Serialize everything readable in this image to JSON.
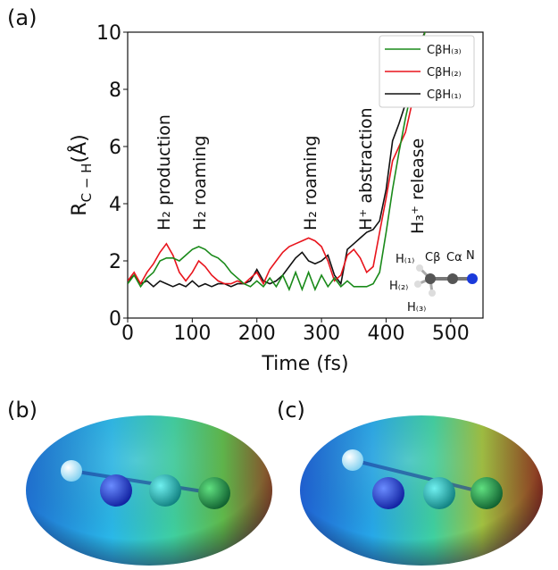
{
  "chart_data": {
    "type": "line",
    "y_label": [
      "R",
      "C − H",
      "(Å)"
    ],
    "x_label": "Time (fs)",
    "xlim": [
      0,
      550
    ],
    "ylim": [
      0,
      10
    ],
    "xticks": [
      0,
      100,
      200,
      300,
      400,
      500
    ],
    "yticks": [
      0,
      2,
      4,
      6,
      8,
      10
    ],
    "legend": "upper right",
    "x": [
      0,
      10,
      20,
      30,
      40,
      50,
      60,
      70,
      80,
      90,
      100,
      110,
      120,
      130,
      140,
      150,
      160,
      170,
      180,
      190,
      200,
      210,
      220,
      230,
      240,
      250,
      260,
      270,
      280,
      290,
      300,
      310,
      320,
      330,
      340,
      350,
      360,
      370,
      380,
      390,
      400,
      410,
      420,
      430,
      440,
      450,
      460
    ],
    "series": [
      {
        "name": "CβH₍₃₎",
        "color": "#1a8a1a",
        "values": [
          1.2,
          1.5,
          1.1,
          1.4,
          1.6,
          2.0,
          2.1,
          2.1,
          2.0,
          2.2,
          2.4,
          2.5,
          2.4,
          2.2,
          2.1,
          1.9,
          1.6,
          1.4,
          1.2,
          1.1,
          1.3,
          1.1,
          1.4,
          1.1,
          1.5,
          1.0,
          1.6,
          1.0,
          1.6,
          1.0,
          1.5,
          1.1,
          1.4,
          1.1,
          1.3,
          1.1,
          1.1,
          1.1,
          1.2,
          1.6,
          3.0,
          4.5,
          5.8,
          7.0,
          8.0,
          9.0,
          10
        ]
      },
      {
        "name": "CβH₍₂₎",
        "color": "#e8141c",
        "values": [
          1.3,
          1.6,
          1.2,
          1.6,
          1.9,
          2.3,
          2.6,
          2.2,
          1.6,
          1.3,
          1.6,
          2.0,
          1.8,
          1.5,
          1.3,
          1.2,
          1.2,
          1.3,
          1.2,
          1.4,
          1.6,
          1.2,
          1.7,
          2.0,
          2.3,
          2.5,
          2.6,
          2.7,
          2.8,
          2.7,
          2.5,
          2.0,
          1.3,
          1.5,
          2.2,
          2.4,
          2.1,
          1.6,
          1.8,
          3.0,
          4.2,
          5.5,
          6.0,
          6.5,
          7.5,
          9.0,
          10
        ]
      },
      {
        "name": "CβH₍₁₎",
        "color": "#111111",
        "values": [
          1.3,
          1.5,
          1.2,
          1.3,
          1.1,
          1.3,
          1.2,
          1.1,
          1.2,
          1.1,
          1.3,
          1.1,
          1.2,
          1.1,
          1.2,
          1.2,
          1.1,
          1.2,
          1.2,
          1.3,
          1.7,
          1.3,
          1.2,
          1.3,
          1.5,
          1.8,
          2.1,
          2.3,
          2.0,
          1.9,
          2.0,
          2.2,
          1.5,
          1.2,
          2.4,
          2.6,
          2.8,
          3.0,
          3.1,
          3.4,
          4.5,
          6.2,
          6.8,
          7.5,
          8.5,
          9.5,
          10
        ]
      }
    ],
    "annotations": [
      "H₂ production",
      "H₂ roaming",
      "H₂ roaming",
      "H⁺ abstraction",
      "H₃⁺ release"
    ]
  },
  "molecule_labels": [
    "H₍₁₎",
    "Cβ",
    "Cα",
    "N",
    "H₍₂₎",
    "H₍₃₎"
  ],
  "panel_labels": [
    "(a)",
    "(b)",
    "(c)"
  ]
}
